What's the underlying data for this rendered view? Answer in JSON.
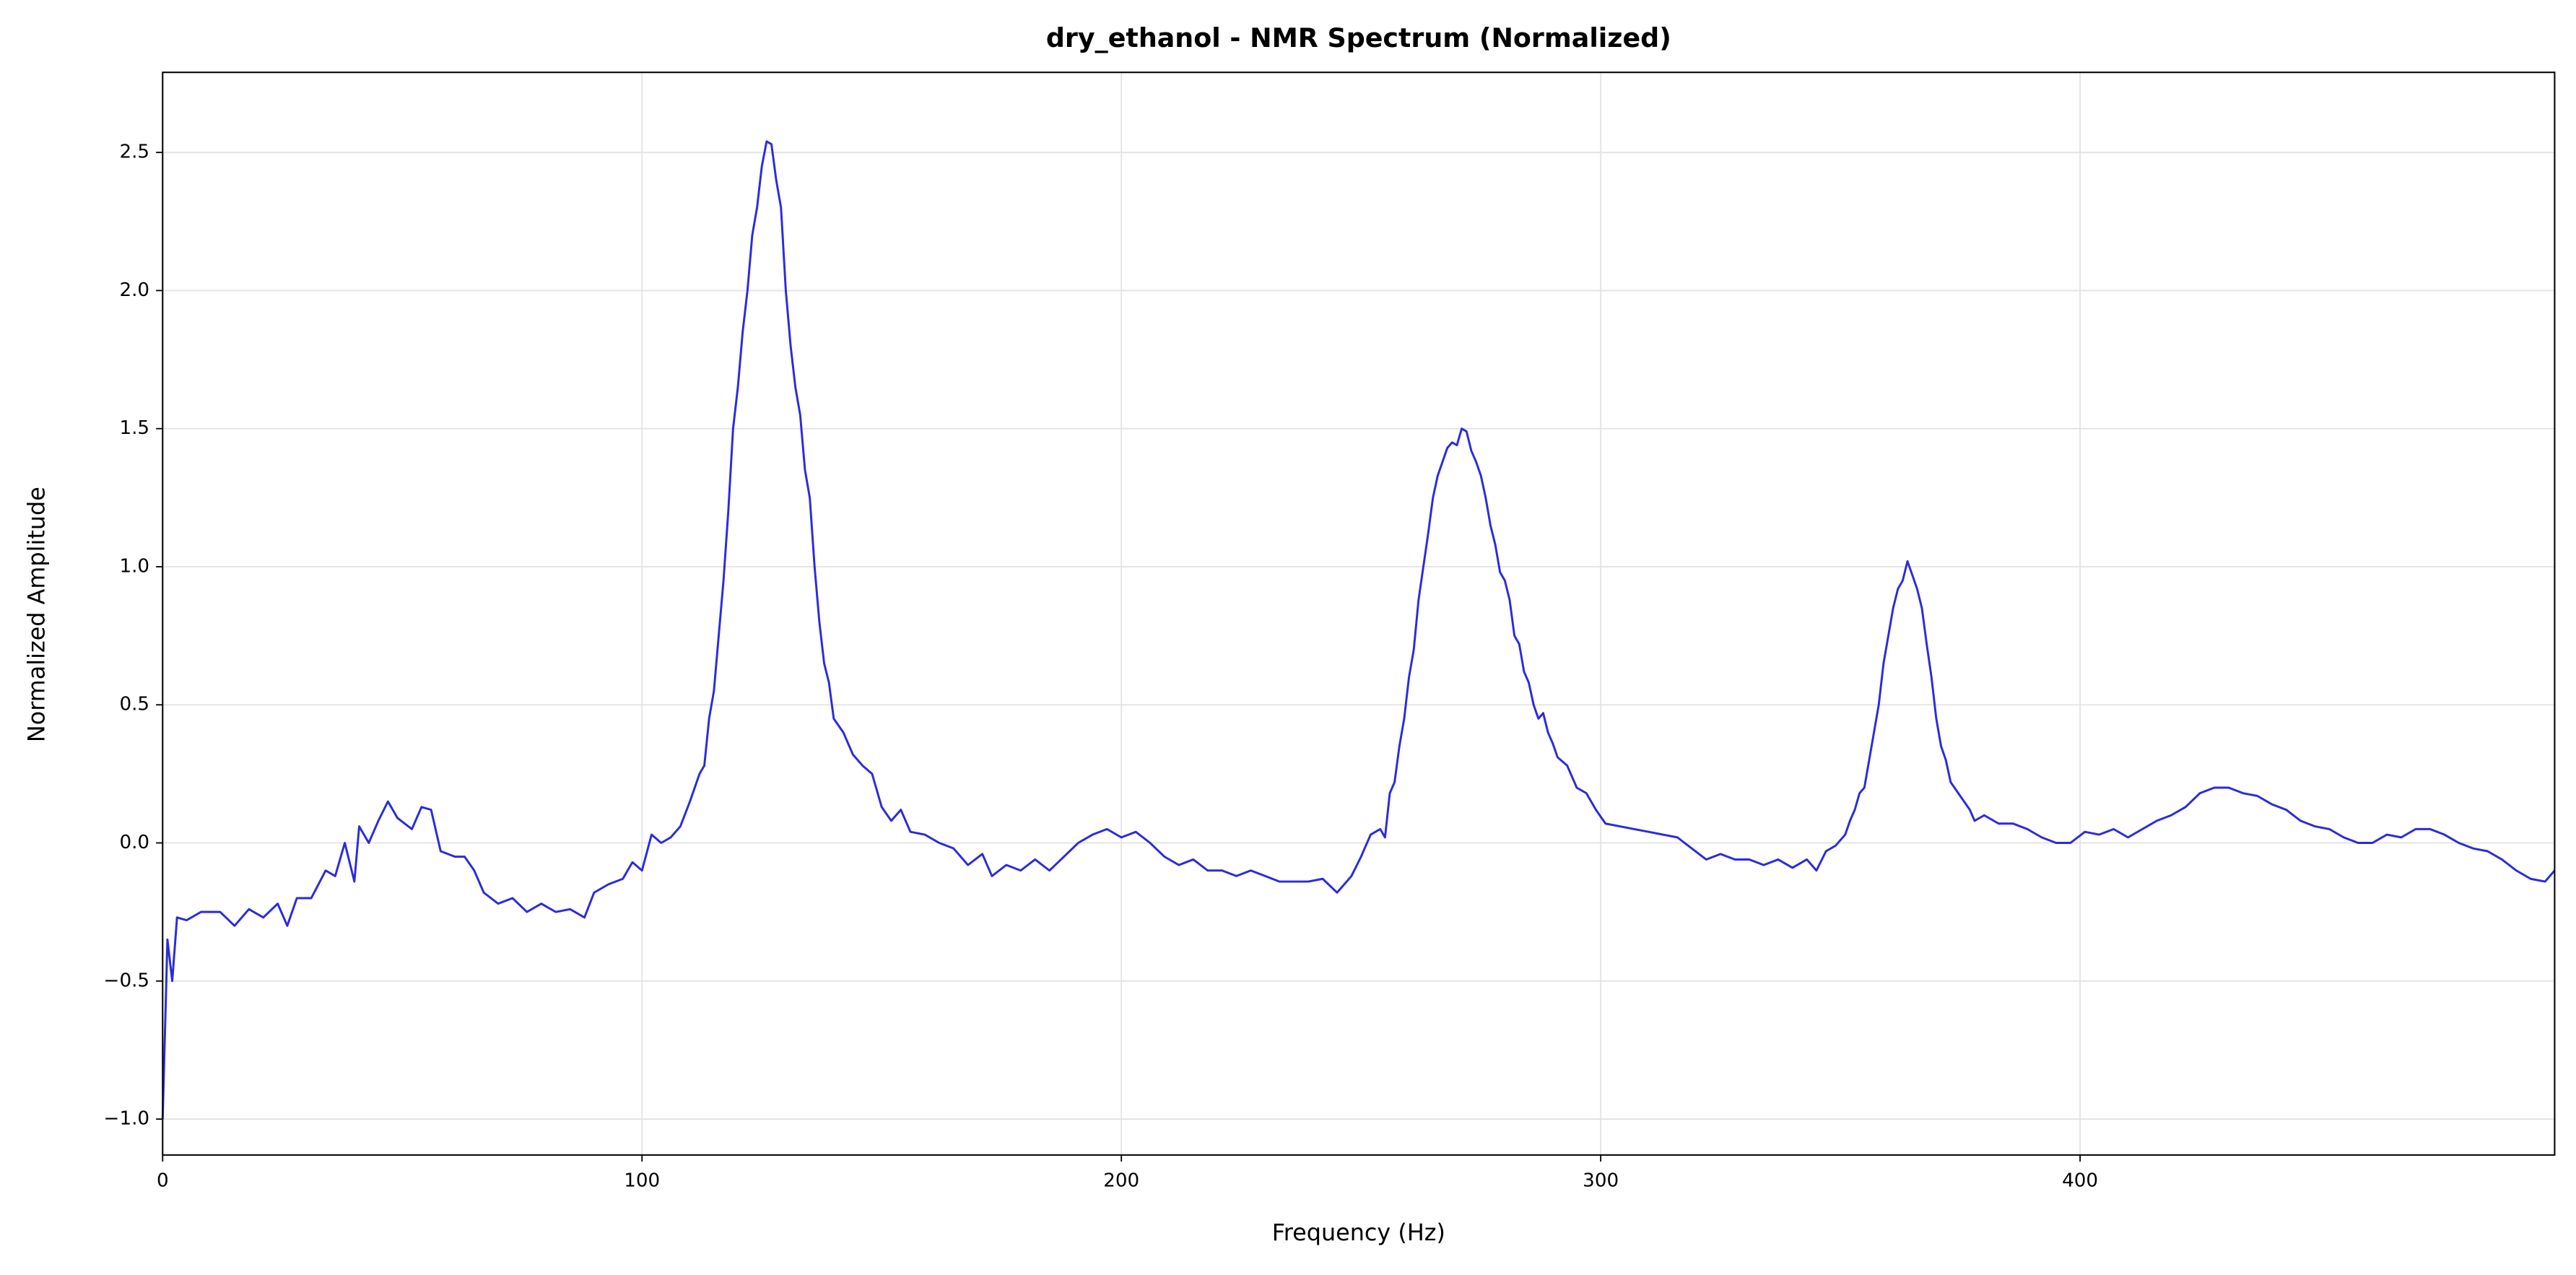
{
  "chart_data": {
    "type": "line",
    "title": "dry_ethanol - NMR Spectrum (Normalized)",
    "xlabel": "Frequency (Hz)",
    "ylabel": "Normalized Amplitude",
    "color": "#2b2bdd",
    "grid": true,
    "xlim": [
      0,
      499
    ],
    "ylim": [
      -1.13,
      2.79
    ],
    "xticks": [
      0,
      100,
      200,
      300,
      400
    ],
    "yticks": [
      {
        "value": -1,
        "label": "−1.0"
      },
      {
        "value": -0.5,
        "label": "−0.5"
      },
      {
        "value": 0,
        "label": "0.0"
      },
      0.5,
      {
        "value": 1,
        "label": "1.0"
      },
      1.5,
      {
        "value": 2,
        "label": "2.0"
      },
      2.5
    ],
    "x": [
      0,
      1,
      2,
      3,
      5,
      8,
      12,
      15,
      18,
      21,
      24,
      26,
      28,
      31,
      34,
      36,
      38,
      40,
      41,
      43,
      45,
      47,
      49,
      52,
      54,
      56,
      58,
      61,
      63,
      65,
      67,
      70,
      73,
      76,
      79,
      82,
      85,
      88,
      90,
      93,
      96,
      98,
      100,
      102,
      104,
      106,
      108,
      110,
      112,
      113,
      114,
      115,
      116,
      117,
      118,
      119,
      120,
      121,
      122,
      123,
      124,
      125,
      126,
      127,
      128,
      129,
      130,
      131,
      132,
      133,
      134,
      135,
      136,
      137,
      138,
      139,
      140,
      142,
      144,
      146,
      148,
      150,
      152,
      154,
      156,
      159,
      162,
      165,
      168,
      171,
      173,
      176,
      179,
      182,
      185,
      188,
      191,
      194,
      197,
      200,
      203,
      206,
      209,
      212,
      215,
      218,
      221,
      224,
      227,
      230,
      233,
      236,
      239,
      242,
      245,
      248,
      250,
      252,
      254,
      255,
      256,
      257,
      258,
      259,
      260,
      261,
      262,
      263,
      264,
      265,
      266,
      267,
      268,
      269,
      270,
      271,
      272,
      273,
      274,
      275,
      276,
      277,
      278,
      279,
      280,
      281,
      282,
      283,
      284,
      285,
      286,
      287,
      288,
      289,
      290,
      291,
      293,
      295,
      297,
      299,
      301,
      304,
      307,
      310,
      313,
      316,
      319,
      322,
      325,
      328,
      331,
      334,
      337,
      340,
      343,
      345,
      347,
      349,
      351,
      352,
      353,
      354,
      355,
      356,
      357,
      358,
      359,
      360,
      361,
      362,
      363,
      364,
      365,
      366,
      367,
      368,
      369,
      370,
      371,
      372,
      373,
      375,
      377,
      378,
      380,
      383,
      386,
      389,
      392,
      395,
      398,
      401,
      404,
      407,
      410,
      413,
      416,
      419,
      422,
      425,
      428,
      431,
      434,
      437,
      440,
      443,
      446,
      449,
      452,
      455,
      458,
      461,
      464,
      467,
      470,
      473,
      476,
      479,
      482,
      485,
      488,
      491,
      494,
      497,
      499
    ],
    "values": [
      -1.0,
      -0.35,
      -0.5,
      -0.27,
      -0.28,
      -0.25,
      -0.25,
      -0.3,
      -0.24,
      -0.27,
      -0.22,
      -0.3,
      -0.2,
      -0.2,
      -0.1,
      -0.12,
      0.0,
      -0.14,
      0.06,
      0.0,
      0.08,
      0.15,
      0.09,
      0.05,
      0.13,
      0.12,
      -0.03,
      -0.05,
      -0.05,
      -0.1,
      -0.18,
      -0.22,
      -0.2,
      -0.25,
      -0.22,
      -0.25,
      -0.24,
      -0.27,
      -0.18,
      -0.15,
      -0.13,
      -0.07,
      -0.1,
      0.03,
      0.0,
      0.02,
      0.06,
      0.15,
      0.25,
      0.28,
      0.45,
      0.55,
      0.75,
      0.95,
      1.2,
      1.5,
      1.65,
      1.85,
      2.0,
      2.2,
      2.3,
      2.45,
      2.54,
      2.53,
      2.4,
      2.3,
      2.0,
      1.8,
      1.65,
      1.55,
      1.35,
      1.25,
      1.0,
      0.8,
      0.65,
      0.58,
      0.45,
      0.4,
      0.32,
      0.28,
      0.25,
      0.13,
      0.08,
      0.12,
      0.04,
      0.03,
      0.0,
      -0.02,
      -0.08,
      -0.04,
      -0.12,
      -0.08,
      -0.1,
      -0.06,
      -0.1,
      -0.05,
      0.0,
      0.03,
      0.05,
      0.02,
      0.04,
      0.0,
      -0.05,
      -0.08,
      -0.06,
      -0.1,
      -0.1,
      -0.12,
      -0.1,
      -0.12,
      -0.14,
      -0.14,
      -0.14,
      -0.13,
      -0.18,
      -0.12,
      -0.05,
      0.03,
      0.05,
      0.02,
      0.18,
      0.22,
      0.35,
      0.45,
      0.6,
      0.7,
      0.88,
      1.0,
      1.12,
      1.25,
      1.33,
      1.38,
      1.43,
      1.45,
      1.44,
      1.5,
      1.49,
      1.42,
      1.38,
      1.33,
      1.25,
      1.15,
      1.08,
      0.98,
      0.95,
      0.88,
      0.75,
      0.72,
      0.62,
      0.58,
      0.5,
      0.45,
      0.47,
      0.4,
      0.36,
      0.31,
      0.28,
      0.2,
      0.18,
      0.12,
      0.07,
      0.06,
      0.05,
      0.04,
      0.03,
      0.02,
      -0.02,
      -0.06,
      -0.04,
      -0.06,
      -0.06,
      -0.08,
      -0.06,
      -0.09,
      -0.06,
      -0.1,
      -0.03,
      -0.01,
      0.03,
      0.08,
      0.12,
      0.18,
      0.2,
      0.3,
      0.4,
      0.5,
      0.65,
      0.75,
      0.85,
      0.92,
      0.95,
      1.02,
      0.97,
      0.92,
      0.85,
      0.72,
      0.6,
      0.45,
      0.35,
      0.3,
      0.22,
      0.17,
      0.12,
      0.08,
      0.1,
      0.07,
      0.07,
      0.05,
      0.02,
      0.0,
      0.0,
      0.04,
      0.03,
      0.05,
      0.02,
      0.05,
      0.08,
      0.1,
      0.13,
      0.18,
      0.2,
      0.2,
      0.18,
      0.17,
      0.14,
      0.12,
      0.08,
      0.06,
      0.05,
      0.02,
      0.0,
      0.0,
      0.03,
      0.02,
      0.05,
      0.05,
      0.03,
      0.0,
      -0.02,
      -0.03,
      -0.06,
      -0.1,
      -0.13,
      -0.14,
      -0.1
    ]
  }
}
